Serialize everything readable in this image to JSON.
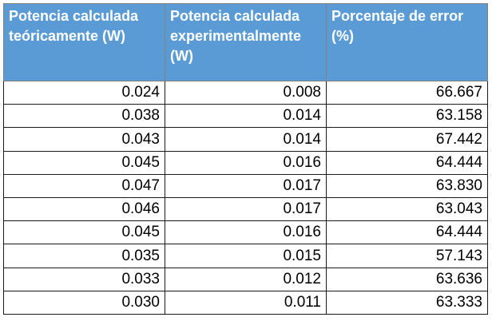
{
  "table": {
    "headers": [
      "Potencia calculada teóricamente (W)",
      "Potencia calculada experimentalmente (W)",
      "Porcentaje de error (%)"
    ],
    "rows": [
      [
        "0.024",
        "0.008",
        "66.667"
      ],
      [
        "0.038",
        "0.014",
        "63.158"
      ],
      [
        "0.043",
        "0.014",
        "67.442"
      ],
      [
        "0.045",
        "0.016",
        "64.444"
      ],
      [
        "0.047",
        "0.017",
        "63.830"
      ],
      [
        "0.046",
        "0.017",
        "63.043"
      ],
      [
        "0.045",
        "0.016",
        "64.444"
      ],
      [
        "0.035",
        "0.015",
        "57.143"
      ],
      [
        "0.033",
        "0.012",
        "63.636"
      ],
      [
        "0.030",
        "0.011",
        "63.333"
      ]
    ]
  },
  "colors": {
    "header_fill": "#5b9bd5",
    "header_text": "#ffffff"
  }
}
